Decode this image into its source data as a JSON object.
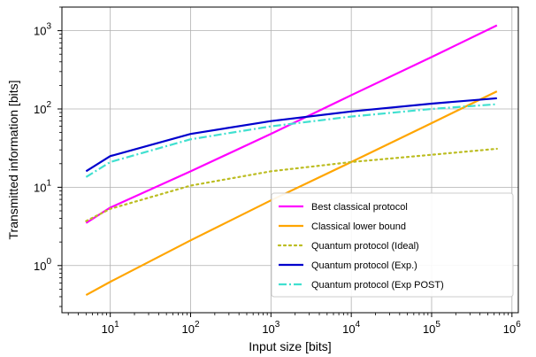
{
  "chart_data": {
    "type": "line",
    "title": "",
    "xlabel": "Input size [bits]",
    "ylabel": "Transmitted information [bits]",
    "x_scale": "log",
    "y_scale": "log",
    "xlim": [
      2.5,
      1200000
    ],
    "ylim": [
      0.25,
      2000
    ],
    "grid": true,
    "legend_position": "lower-right",
    "x_ticks": [
      {
        "value": 10,
        "base": "10",
        "exp": "1"
      },
      {
        "value": 100,
        "base": "10",
        "exp": "2"
      },
      {
        "value": 1000,
        "base": "10",
        "exp": "3"
      },
      {
        "value": 10000,
        "base": "10",
        "exp": "4"
      },
      {
        "value": 100000,
        "base": "10",
        "exp": "5"
      },
      {
        "value": 1000000,
        "base": "10",
        "exp": "6"
      }
    ],
    "y_ticks": [
      {
        "value": 1,
        "base": "10",
        "exp": "0"
      },
      {
        "value": 10,
        "base": "10",
        "exp": "1"
      },
      {
        "value": 100,
        "base": "10",
        "exp": "2"
      },
      {
        "value": 1000,
        "base": "10",
        "exp": "3"
      }
    ],
    "series": [
      {
        "name": "Best classical protocol",
        "color": "#ff00ff",
        "dash": "solid",
        "x": [
          5,
          10,
          100,
          1000,
          10000,
          100000,
          650000
        ],
        "y": [
          3.5,
          5.5,
          16,
          48,
          150,
          460,
          1170
        ]
      },
      {
        "name": "Classical lower bound",
        "color": "#ffa500",
        "dash": "solid",
        "x": [
          5,
          10,
          100,
          1000,
          10000,
          100000,
          650000
        ],
        "y": [
          0.42,
          0.62,
          2.1,
          6.8,
          21,
          66,
          168
        ]
      },
      {
        "name": "Quantum protocol (Ideal)",
        "color": "#bcbd22",
        "dash": "dotted",
        "x": [
          5,
          10,
          100,
          1000,
          10000,
          100000,
          650000
        ],
        "y": [
          3.7,
          5.3,
          10.5,
          16,
          21,
          26,
          31
        ]
      },
      {
        "name": "Quantum protocol (Exp.)",
        "color": "#0000cd",
        "dash": "solid",
        "x": [
          5,
          10,
          100,
          1000,
          10000,
          100000,
          650000
        ],
        "y": [
          16,
          25,
          48,
          70,
          93,
          117,
          137
        ]
      },
      {
        "name": "Quantum protocol (Exp POST)",
        "color": "#40e0d0",
        "dash": "dashdot",
        "x": [
          5,
          10,
          100,
          1000,
          10000,
          100000,
          650000
        ],
        "y": [
          13.5,
          21,
          41,
          60,
          80,
          100,
          115
        ]
      }
    ]
  }
}
